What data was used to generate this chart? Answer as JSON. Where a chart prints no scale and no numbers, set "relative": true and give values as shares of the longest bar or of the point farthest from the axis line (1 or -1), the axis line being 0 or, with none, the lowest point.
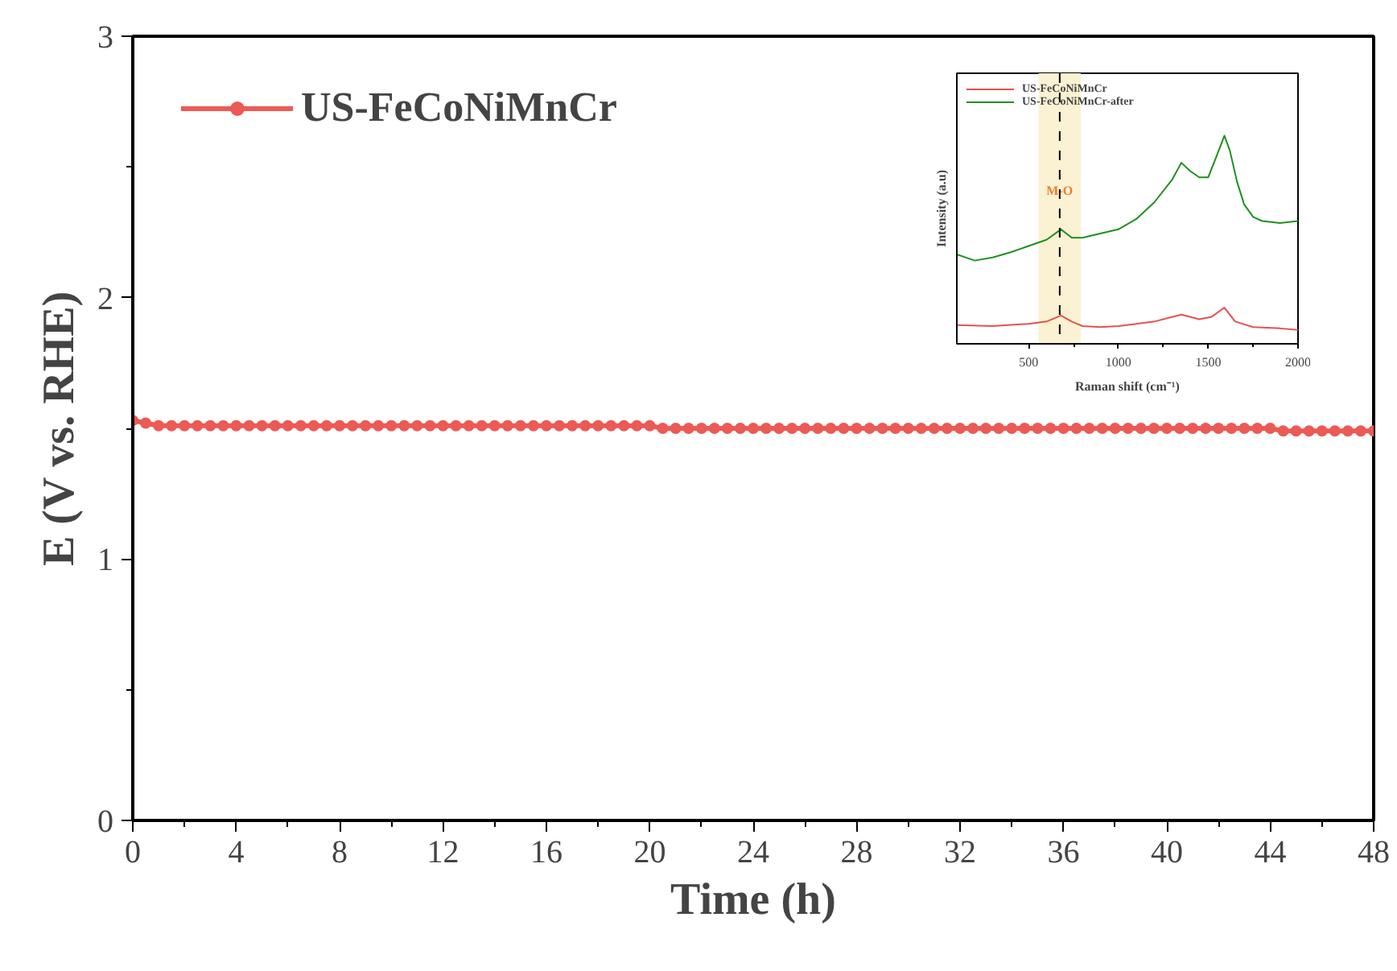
{
  "chart_data": [
    {
      "type": "line",
      "xlabel": "Time (h)",
      "ylabel": "E (V vs. RHE)",
      "xlim": [
        0,
        48
      ],
      "ylim": [
        0,
        3
      ],
      "xticks": [
        0,
        4,
        8,
        12,
        16,
        20,
        24,
        28,
        32,
        36,
        40,
        44,
        48
      ],
      "yticks": [
        0,
        1,
        2,
        3
      ],
      "legend": "top left",
      "marker": "circle",
      "grid": false,
      "x": [
        0,
        0.5,
        1,
        1.5,
        2,
        2.5,
        3,
        3.5,
        4,
        4.5,
        5,
        5.5,
        6,
        6.5,
        7,
        7.5,
        8,
        8.5,
        9,
        9.5,
        10,
        10.5,
        11,
        11.5,
        12,
        12.5,
        13,
        13.5,
        14,
        14.5,
        15,
        15.5,
        16,
        16.5,
        17,
        17.5,
        18,
        18.5,
        19,
        19.5,
        20,
        20.5,
        21,
        21.5,
        22,
        22.5,
        23,
        23.5,
        24,
        24.5,
        25,
        25.5,
        26,
        26.5,
        27,
        27.5,
        28,
        28.5,
        29,
        29.5,
        30,
        30.5,
        31,
        31.5,
        32,
        32.5,
        33,
        33.5,
        34,
        34.5,
        35,
        35.5,
        36,
        36.5,
        37,
        37.5,
        38,
        38.5,
        39,
        39.5,
        40,
        40.5,
        41,
        41.5,
        42,
        42.5,
        43,
        43.5,
        44,
        44.5,
        45,
        45.5,
        46,
        46.5,
        47,
        47.5,
        48
      ],
      "series": [
        {
          "name": "US-FeCoNiMnCr",
          "color": "#ec5a55",
          "values": [
            1.53,
            1.52,
            1.51,
            1.51,
            1.51,
            1.51,
            1.51,
            1.51,
            1.51,
            1.51,
            1.51,
            1.51,
            1.51,
            1.51,
            1.51,
            1.51,
            1.51,
            1.51,
            1.51,
            1.51,
            1.51,
            1.51,
            1.51,
            1.51,
            1.51,
            1.51,
            1.51,
            1.51,
            1.51,
            1.51,
            1.51,
            1.51,
            1.51,
            1.51,
            1.51,
            1.51,
            1.51,
            1.51,
            1.51,
            1.51,
            1.51,
            1.5,
            1.5,
            1.5,
            1.5,
            1.5,
            1.5,
            1.5,
            1.5,
            1.5,
            1.5,
            1.5,
            1.5,
            1.5,
            1.5,
            1.5,
            1.5,
            1.5,
            1.5,
            1.5,
            1.5,
            1.5,
            1.5,
            1.5,
            1.5,
            1.5,
            1.5,
            1.5,
            1.5,
            1.5,
            1.5,
            1.5,
            1.5,
            1.5,
            1.5,
            1.5,
            1.5,
            1.5,
            1.5,
            1.5,
            1.5,
            1.5,
            1.5,
            1.5,
            1.5,
            1.5,
            1.5,
            1.5,
            1.5,
            1.49,
            1.49,
            1.49,
            1.49,
            1.49,
            1.49,
            1.49,
            1.49
          ]
        }
      ]
    },
    {
      "type": "line",
      "xlabel": "Raman shift (cm⁻¹)",
      "ylabel": "Intensity (a.u)",
      "xlim": [
        100,
        2000
      ],
      "xticks": [
        500,
        1000,
        1500,
        2000
      ],
      "relative": true,
      "legend": "top left",
      "grid": false,
      "series": [
        {
          "name": "US-FeCoNiMnCr",
          "color": "#e4524f",
          "x": [
            100,
            300,
            500,
            600,
            680,
            740,
            800,
            900,
            1000,
            1100,
            1200,
            1350,
            1450,
            1520,
            1590,
            1650,
            1750,
            1900,
            2000
          ],
          "values": [
            0.09,
            0.085,
            0.096,
            0.107,
            0.136,
            0.107,
            0.085,
            0.08,
            0.085,
            0.096,
            0.107,
            0.14,
            0.118,
            0.13,
            0.174,
            0.107,
            0.08,
            0.074,
            0.067
          ]
        },
        {
          "name": "US-FeCoNiMnCr-after",
          "color": "#1f8f1f",
          "x": [
            100,
            200,
            300,
            400,
            500,
            600,
            680,
            740,
            800,
            900,
            1000,
            1100,
            1200,
            1300,
            1350,
            1400,
            1450,
            1500,
            1550,
            1590,
            1620,
            1660,
            1700,
            1750,
            1800,
            1900,
            2000
          ],
          "values": [
            0.43,
            0.4,
            0.415,
            0.44,
            0.47,
            0.5,
            0.55,
            0.51,
            0.51,
            0.53,
            0.55,
            0.6,
            0.68,
            0.79,
            0.87,
            0.83,
            0.8,
            0.8,
            0.91,
            1.0,
            0.93,
            0.78,
            0.67,
            0.61,
            0.59,
            0.58,
            0.59
          ]
        }
      ],
      "bands": [
        {
          "axis": "x",
          "from": 555,
          "to": 790,
          "label": "M-O",
          "color": "#faf2d2"
        }
      ],
      "ref_lines": [
        {
          "axis": "x",
          "value": 673,
          "line_style": "dashed",
          "color": "#000000"
        }
      ]
    }
  ]
}
